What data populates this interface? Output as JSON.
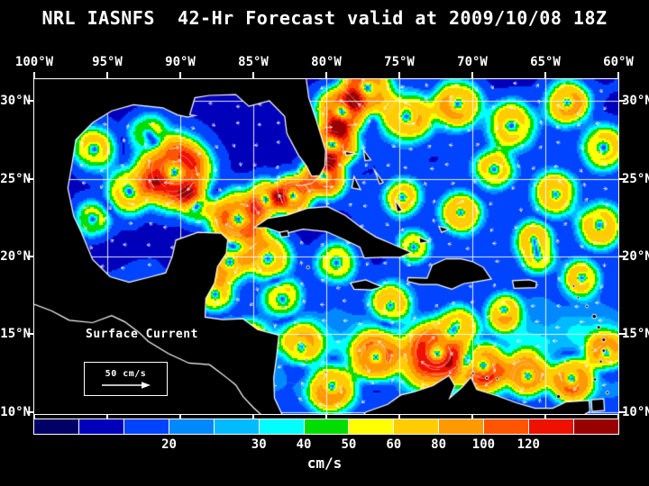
{
  "title": "NRL IASNFS  42-Hr Forecast valid at 2009/10/08 18Z",
  "map": {
    "lon_labels": [
      "100°W",
      "95°W",
      "90°W",
      "85°W",
      "80°W",
      "75°W",
      "70°W",
      "65°W",
      "60°W"
    ],
    "lat_labels": [
      "30°N",
      "25°N",
      "20°N",
      "15°N",
      "10°N"
    ],
    "overlay_label": "Surface Current",
    "reference_label": "50 cm/s"
  },
  "colorbar": {
    "units": "cm/s",
    "segments": [
      "#000066",
      "#0000bb",
      "#0044ff",
      "#0088ff",
      "#00bbff",
      "#00ffff",
      "#00dd00",
      "#ffff00",
      "#ffcc00",
      "#ff9900",
      "#ff5500",
      "#ee1100",
      "#990000"
    ],
    "ticks": [
      {
        "label": "20",
        "boundary_index": 3
      },
      {
        "label": "30",
        "boundary_index": 5
      },
      {
        "label": "40",
        "boundary_index": 6
      },
      {
        "label": "50",
        "boundary_index": 7
      },
      {
        "label": "60",
        "boundary_index": 8
      },
      {
        "label": "80",
        "boundary_index": 9
      },
      {
        "label": "100",
        "boundary_index": 10
      },
      {
        "label": "120",
        "boundary_index": 11
      }
    ]
  },
  "colors": {
    "background": "#000000",
    "text": "#ffffff",
    "coastline": "#ffffff",
    "land": "#000000",
    "grid": "#ffffff"
  }
}
